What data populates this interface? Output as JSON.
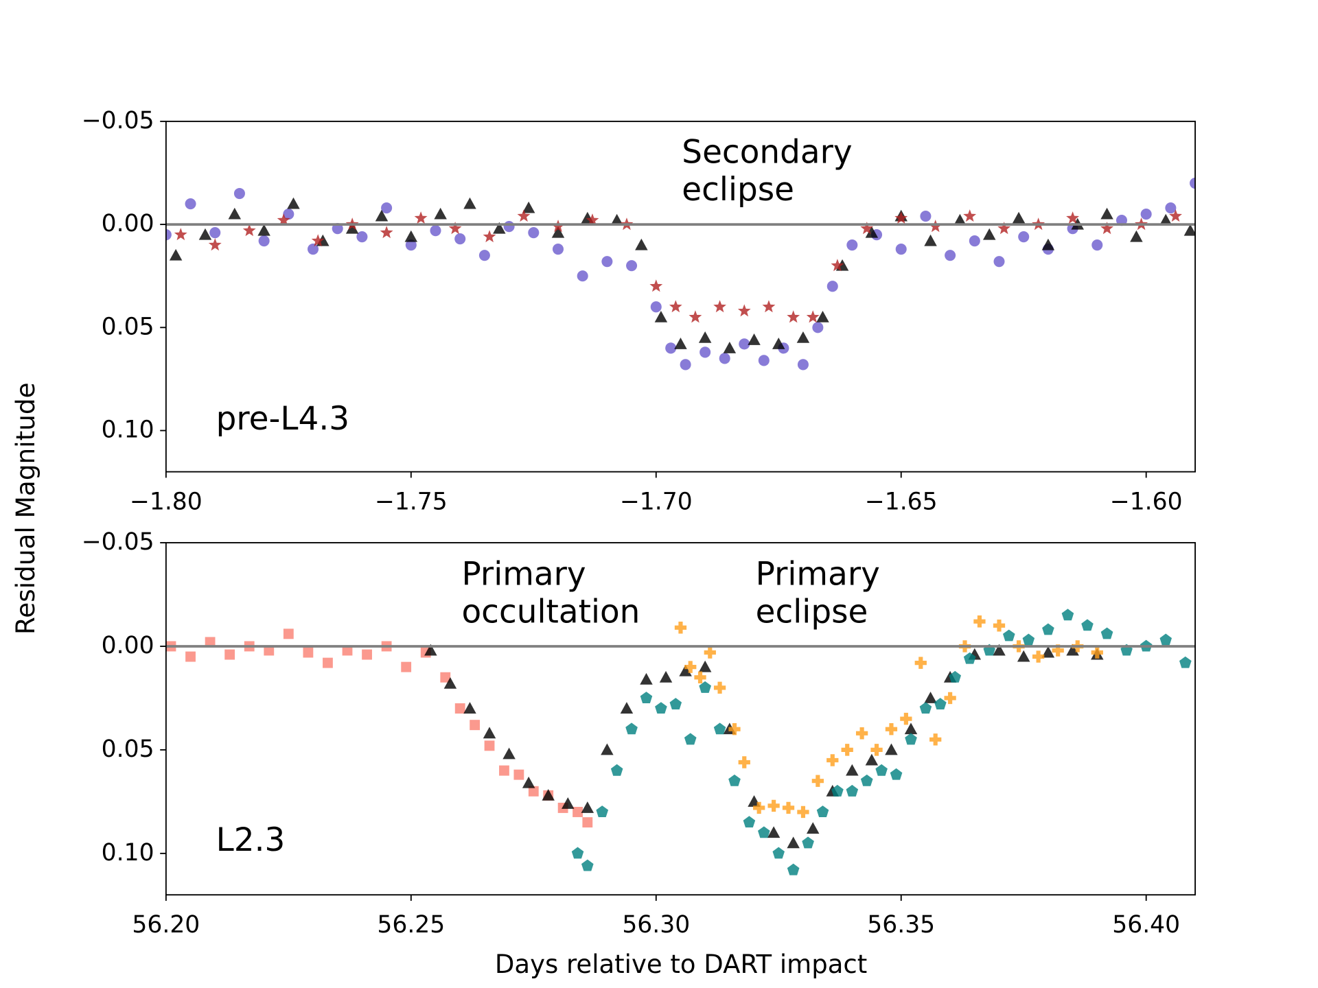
{
  "chart_data": [
    {
      "type": "scatter",
      "ylabel": "Residual Magnitude",
      "xlim": [
        -1.8,
        -1.59
      ],
      "xticks": [
        {
          "value": -1.8,
          "label": "−1.80"
        },
        {
          "value": -1.75,
          "label": "−1.75"
        },
        {
          "value": -1.7,
          "label": "−1.70"
        },
        {
          "value": -1.65,
          "label": "−1.65"
        },
        {
          "value": -1.6,
          "label": "−1.60"
        }
      ],
      "ylim": [
        -0.05,
        0.12
      ],
      "y_inverted": true,
      "yticks": [
        {
          "value": -0.05,
          "label": "−0.05"
        },
        {
          "value": 0,
          "label": "0.00"
        },
        0.05,
        {
          "value": 0.1,
          "label": "0.10"
        }
      ],
      "hline": 0,
      "hline_color": "#808080",
      "annotations": [
        {
          "lines": [
            "Secondary",
            "eclipse"
          ]
        },
        {
          "lines": [
            "pre-L4.3"
          ]
        }
      ],
      "series": [
        {
          "marker": "o",
          "color": "#6a5acd",
          "x": [
            -1.8,
            -1.795,
            -1.79,
            -1.785,
            -1.78,
            -1.775,
            -1.77,
            -1.765,
            -1.76,
            -1.755,
            -1.75,
            -1.745,
            -1.74,
            -1.735,
            -1.73,
            -1.725,
            -1.72,
            -1.715,
            -1.71,
            -1.705,
            -1.7,
            -1.697,
            -1.694,
            -1.69,
            -1.686,
            -1.682,
            -1.678,
            -1.674,
            -1.67,
            -1.667,
            -1.664,
            -1.66,
            -1.655,
            -1.65,
            -1.645,
            -1.64,
            -1.635,
            -1.63,
            -1.625,
            -1.62,
            -1.615,
            -1.61,
            -1.605,
            -1.6,
            -1.595,
            -1.59
          ],
          "values": [
            0.005,
            -0.01,
            0.004,
            -0.015,
            0.008,
            -0.005,
            0.012,
            0.002,
            0.006,
            -0.008,
            0.01,
            0.003,
            0.007,
            0.015,
            0.001,
            0.004,
            0.012,
            0.025,
            0.018,
            0.02,
            0.04,
            0.06,
            0.068,
            0.062,
            0.065,
            0.058,
            0.066,
            0.06,
            0.068,
            0.05,
            0.03,
            0.01,
            0.005,
            0.012,
            -0.004,
            0.015,
            0.008,
            0.018,
            0.006,
            0.012,
            0.002,
            0.01,
            -0.002,
            -0.005,
            -0.008,
            -0.02
          ]
        },
        {
          "marker": "^",
          "color": "#000000",
          "x": [
            -1.798,
            -1.792,
            -1.786,
            -1.78,
            -1.774,
            -1.768,
            -1.762,
            -1.756,
            -1.75,
            -1.744,
            -1.738,
            -1.732,
            -1.726,
            -1.72,
            -1.714,
            -1.708,
            -1.703,
            -1.699,
            -1.695,
            -1.69,
            -1.685,
            -1.68,
            -1.675,
            -1.67,
            -1.666,
            -1.662,
            -1.656,
            -1.65,
            -1.644,
            -1.638,
            -1.632,
            -1.626,
            -1.62,
            -1.614,
            -1.608,
            -1.602,
            -1.596,
            -1.591
          ],
          "values": [
            0.015,
            0.005,
            -0.005,
            0.003,
            -0.01,
            0.008,
            0.002,
            -0.004,
            0.006,
            -0.005,
            -0.01,
            0.002,
            -0.008,
            0.004,
            -0.003,
            -0.002,
            0.01,
            0.045,
            0.058,
            0.055,
            0.06,
            0.056,
            0.058,
            0.055,
            0.045,
            0.02,
            0.004,
            -0.004,
            0.008,
            -0.002,
            0.005,
            -0.003,
            0.01,
            0.0,
            -0.005,
            0.006,
            -0.002,
            0.003
          ]
        },
        {
          "marker": "*",
          "color": "#b22222",
          "x": [
            -1.797,
            -1.79,
            -1.783,
            -1.776,
            -1.769,
            -1.762,
            -1.755,
            -1.748,
            -1.741,
            -1.734,
            -1.727,
            -1.72,
            -1.713,
            -1.706,
            -1.7,
            -1.696,
            -1.692,
            -1.687,
            -1.682,
            -1.677,
            -1.672,
            -1.668,
            -1.663,
            -1.657,
            -1.65,
            -1.643,
            -1.636,
            -1.629,
            -1.622,
            -1.615,
            -1.608,
            -1.601,
            -1.594
          ],
          "values": [
            0.005,
            0.01,
            0.003,
            -0.002,
            0.008,
            0.0,
            0.004,
            -0.003,
            0.002,
            0.006,
            -0.004,
            0.001,
            -0.002,
            0.0,
            0.03,
            0.04,
            0.045,
            0.04,
            0.042,
            0.04,
            0.045,
            0.045,
            0.02,
            0.002,
            -0.003,
            0.001,
            -0.004,
            0.002,
            0.0,
            -0.003,
            0.002,
            0.0,
            -0.004
          ]
        }
      ]
    },
    {
      "type": "scatter",
      "xlabel": "Days relative to DART impact",
      "xlim": [
        56.2,
        56.41
      ],
      "xticks": [
        {
          "value": 56.2,
          "label": "56.20"
        },
        56.25,
        {
          "value": 56.3,
          "label": "56.30"
        },
        56.35,
        {
          "value": 56.4,
          "label": "56.40"
        }
      ],
      "ylim": [
        -0.05,
        0.12
      ],
      "y_inverted": true,
      "yticks": [
        {
          "value": -0.05,
          "label": "−0.05"
        },
        {
          "value": 0,
          "label": "0.00"
        },
        0.05,
        {
          "value": 0.1,
          "label": "0.10"
        }
      ],
      "hline": 0,
      "hline_color": "#808080",
      "annotations": [
        {
          "lines": [
            "Primary",
            "occultation"
          ]
        },
        {
          "lines": [
            "Primary",
            "eclipse"
          ]
        },
        {
          "lines": [
            "L2.3"
          ]
        }
      ],
      "series": [
        {
          "marker": "s",
          "color": "#fa8072",
          "x": [
            56.201,
            56.205,
            56.209,
            56.213,
            56.217,
            56.221,
            56.225,
            56.229,
            56.233,
            56.237,
            56.241,
            56.245,
            56.249,
            56.253,
            56.257,
            56.26,
            56.263,
            56.266,
            56.269,
            56.272,
            56.275,
            56.278,
            56.281,
            56.284,
            56.286
          ],
          "values": [
            0.0,
            0.005,
            -0.002,
            0.004,
            0.0,
            0.002,
            -0.006,
            0.003,
            0.008,
            0.002,
            0.004,
            0.0,
            0.01,
            0.003,
            0.015,
            0.03,
            0.038,
            0.048,
            0.06,
            0.062,
            0.07,
            0.072,
            0.078,
            0.08,
            0.085
          ]
        },
        {
          "marker": "^",
          "color": "#000000",
          "x": [
            56.254,
            56.258,
            56.262,
            56.266,
            56.27,
            56.274,
            56.278,
            56.282,
            56.286,
            56.29,
            56.294,
            56.298,
            56.302,
            56.306,
            56.31,
            56.315,
            56.32,
            56.324,
            56.328,
            56.332,
            56.336,
            56.34,
            56.344,
            56.348,
            56.352,
            56.356,
            56.36,
            56.365,
            56.37,
            56.375,
            56.38,
            56.385,
            56.39
          ],
          "values": [
            0.002,
            0.018,
            0.03,
            0.042,
            0.052,
            0.066,
            0.072,
            0.076,
            0.078,
            0.05,
            0.03,
            0.016,
            0.015,
            0.012,
            0.01,
            0.04,
            0.075,
            0.09,
            0.095,
            0.088,
            0.07,
            0.06,
            0.055,
            0.05,
            0.04,
            0.025,
            0.015,
            0.004,
            0.002,
            0.005,
            0.003,
            0.002,
            0.004
          ]
        },
        {
          "marker": "P",
          "color": "#ff9f1c",
          "x": [
            56.305,
            56.307,
            56.309,
            56.311,
            56.313,
            56.316,
            56.318,
            56.321,
            56.324,
            56.327,
            56.33,
            56.333,
            56.336,
            56.339,
            56.342,
            56.345,
            56.348,
            56.351,
            56.354,
            56.357,
            56.36,
            56.363,
            56.366,
            56.37,
            56.374,
            56.378,
            56.382,
            56.386,
            56.39
          ],
          "values": [
            -0.009,
            0.01,
            0.015,
            0.003,
            0.02,
            0.04,
            0.056,
            0.078,
            0.077,
            0.078,
            0.08,
            0.065,
            0.055,
            0.05,
            0.042,
            0.05,
            0.04,
            0.035,
            0.008,
            0.045,
            0.025,
            0.0,
            -0.012,
            -0.01,
            0.0,
            0.005,
            0.002,
            0.0,
            0.003
          ]
        },
        {
          "marker": "p",
          "color": "#008080",
          "x": [
            56.284,
            56.286,
            56.289,
            56.292,
            56.295,
            56.298,
            56.301,
            56.304,
            56.307,
            56.31,
            56.313,
            56.316,
            56.319,
            56.322,
            56.325,
            56.328,
            56.331,
            56.334,
            56.337,
            56.34,
            56.343,
            56.346,
            56.349,
            56.352,
            56.355,
            56.358,
            56.361,
            56.364,
            56.368,
            56.372,
            56.376,
            56.38,
            56.384,
            56.388,
            56.392,
            56.396,
            56.4,
            56.404,
            56.408
          ],
          "values": [
            0.1,
            0.106,
            0.08,
            0.06,
            0.04,
            0.025,
            0.03,
            0.028,
            0.045,
            0.02,
            0.04,
            0.065,
            0.085,
            0.09,
            0.1,
            0.108,
            0.095,
            0.08,
            0.07,
            0.07,
            0.065,
            0.06,
            0.062,
            0.045,
            0.03,
            0.028,
            0.015,
            0.006,
            0.002,
            -0.005,
            -0.003,
            -0.008,
            -0.015,
            -0.01,
            -0.006,
            0.002,
            0.0,
            -0.003,
            0.008
          ]
        }
      ]
    }
  ]
}
